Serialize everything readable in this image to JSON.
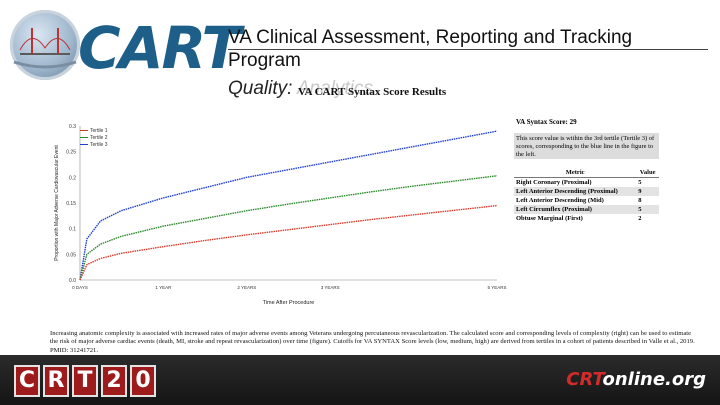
{
  "header": {
    "logo_text": "CART",
    "title": "VA Clinical Assessment, Reporting and Tracking Program",
    "subtitle_prefix": "Quality:",
    "subtitle_ghost": "Analytics"
  },
  "panel": {
    "title": "VA CART Syntax Score Results",
    "score_label": "VA Syntax Score: 29",
    "score_description": "This score value is within the 3rd tertile (Tertile 3) of scores, corresponding to the blue line in the figure to the left.",
    "metrics_header": {
      "metric": "Metric",
      "value": "Value"
    },
    "metrics": [
      {
        "metric": "Right Coronary (Proximal)",
        "value": "5"
      },
      {
        "metric": "Left Anterior Descending (Proximal)",
        "value": "9"
      },
      {
        "metric": "Left Anterior Descending (Mid)",
        "value": "8"
      },
      {
        "metric": "Left Circumflex (Proximal)",
        "value": "5"
      },
      {
        "metric": "Obtuse Marginal (First)",
        "value": "2"
      }
    ]
  },
  "chart_data": {
    "type": "line",
    "title": "",
    "xlabel": "Time After Procedure",
    "ylabel": "Proportion with Major Adverse Cardiovascular Event",
    "xlim": [
      0,
      1825
    ],
    "ylim": [
      0,
      0.3
    ],
    "x_ticks": [
      "0 DAYS",
      "1 YEAR",
      "2 YEARS",
      "3 YEARS",
      "5 YEARS"
    ],
    "y_ticks": [
      "0.0",
      "0.05",
      "0.1",
      "0.15",
      "0.2",
      "0.25",
      "0.3"
    ],
    "legend": [
      "Tertile 1",
      "Tertile 2",
      "Tertile 3"
    ],
    "legend_position": "top-left",
    "series": [
      {
        "name": "Tertile 3",
        "color": "#1f3fd1",
        "x": [
          0,
          30,
          90,
          180,
          365,
          548,
          730,
          913,
          1095,
          1278,
          1460,
          1643,
          1825
        ],
        "values": [
          0.0,
          0.08,
          0.115,
          0.135,
          0.16,
          0.18,
          0.2,
          0.215,
          0.23,
          0.245,
          0.26,
          0.275,
          0.29
        ]
      },
      {
        "name": "Tertile 2",
        "color": "#2a8a2a",
        "x": [
          0,
          30,
          90,
          180,
          365,
          548,
          730,
          913,
          1095,
          1278,
          1460,
          1643,
          1825
        ],
        "values": [
          0.0,
          0.05,
          0.07,
          0.085,
          0.105,
          0.12,
          0.135,
          0.148,
          0.16,
          0.172,
          0.183,
          0.193,
          0.203
        ]
      },
      {
        "name": "Tertile 1",
        "color": "#d93b2b",
        "x": [
          0,
          30,
          90,
          180,
          365,
          548,
          730,
          913,
          1095,
          1278,
          1460,
          1643,
          1825
        ],
        "values": [
          0.0,
          0.03,
          0.042,
          0.052,
          0.065,
          0.077,
          0.088,
          0.098,
          0.108,
          0.118,
          0.127,
          0.136,
          0.145
        ]
      }
    ]
  },
  "caption": "Increasing anatomic complexity is associated with increased rates of major adverse events among Veterans undergoing percutaneous revascularization. The calculated score and corresponding levels of complexity (right) can be used to estimate the risk of major adverse cardiac events (death, MI, stroke and repeat revascularization) over time (figure). Cutoffs for VA SYNTAX Score levels (low, medium, high) are derived from tertiles in a cohort of patients described in Valle et al., 2019. PMID: 31241721.",
  "footer": {
    "crt_letters": [
      "C",
      "R",
      "T",
      "2",
      "0"
    ],
    "site_prefix": "CRT",
    "site_suffix": "online.org"
  },
  "colors": {
    "logo_blue": "#1e5f8a",
    "footer_bg": "#1c1c1c",
    "crt_red": "#9e1b1b"
  },
  "icons": [
    "globe-bridge-icon"
  ]
}
